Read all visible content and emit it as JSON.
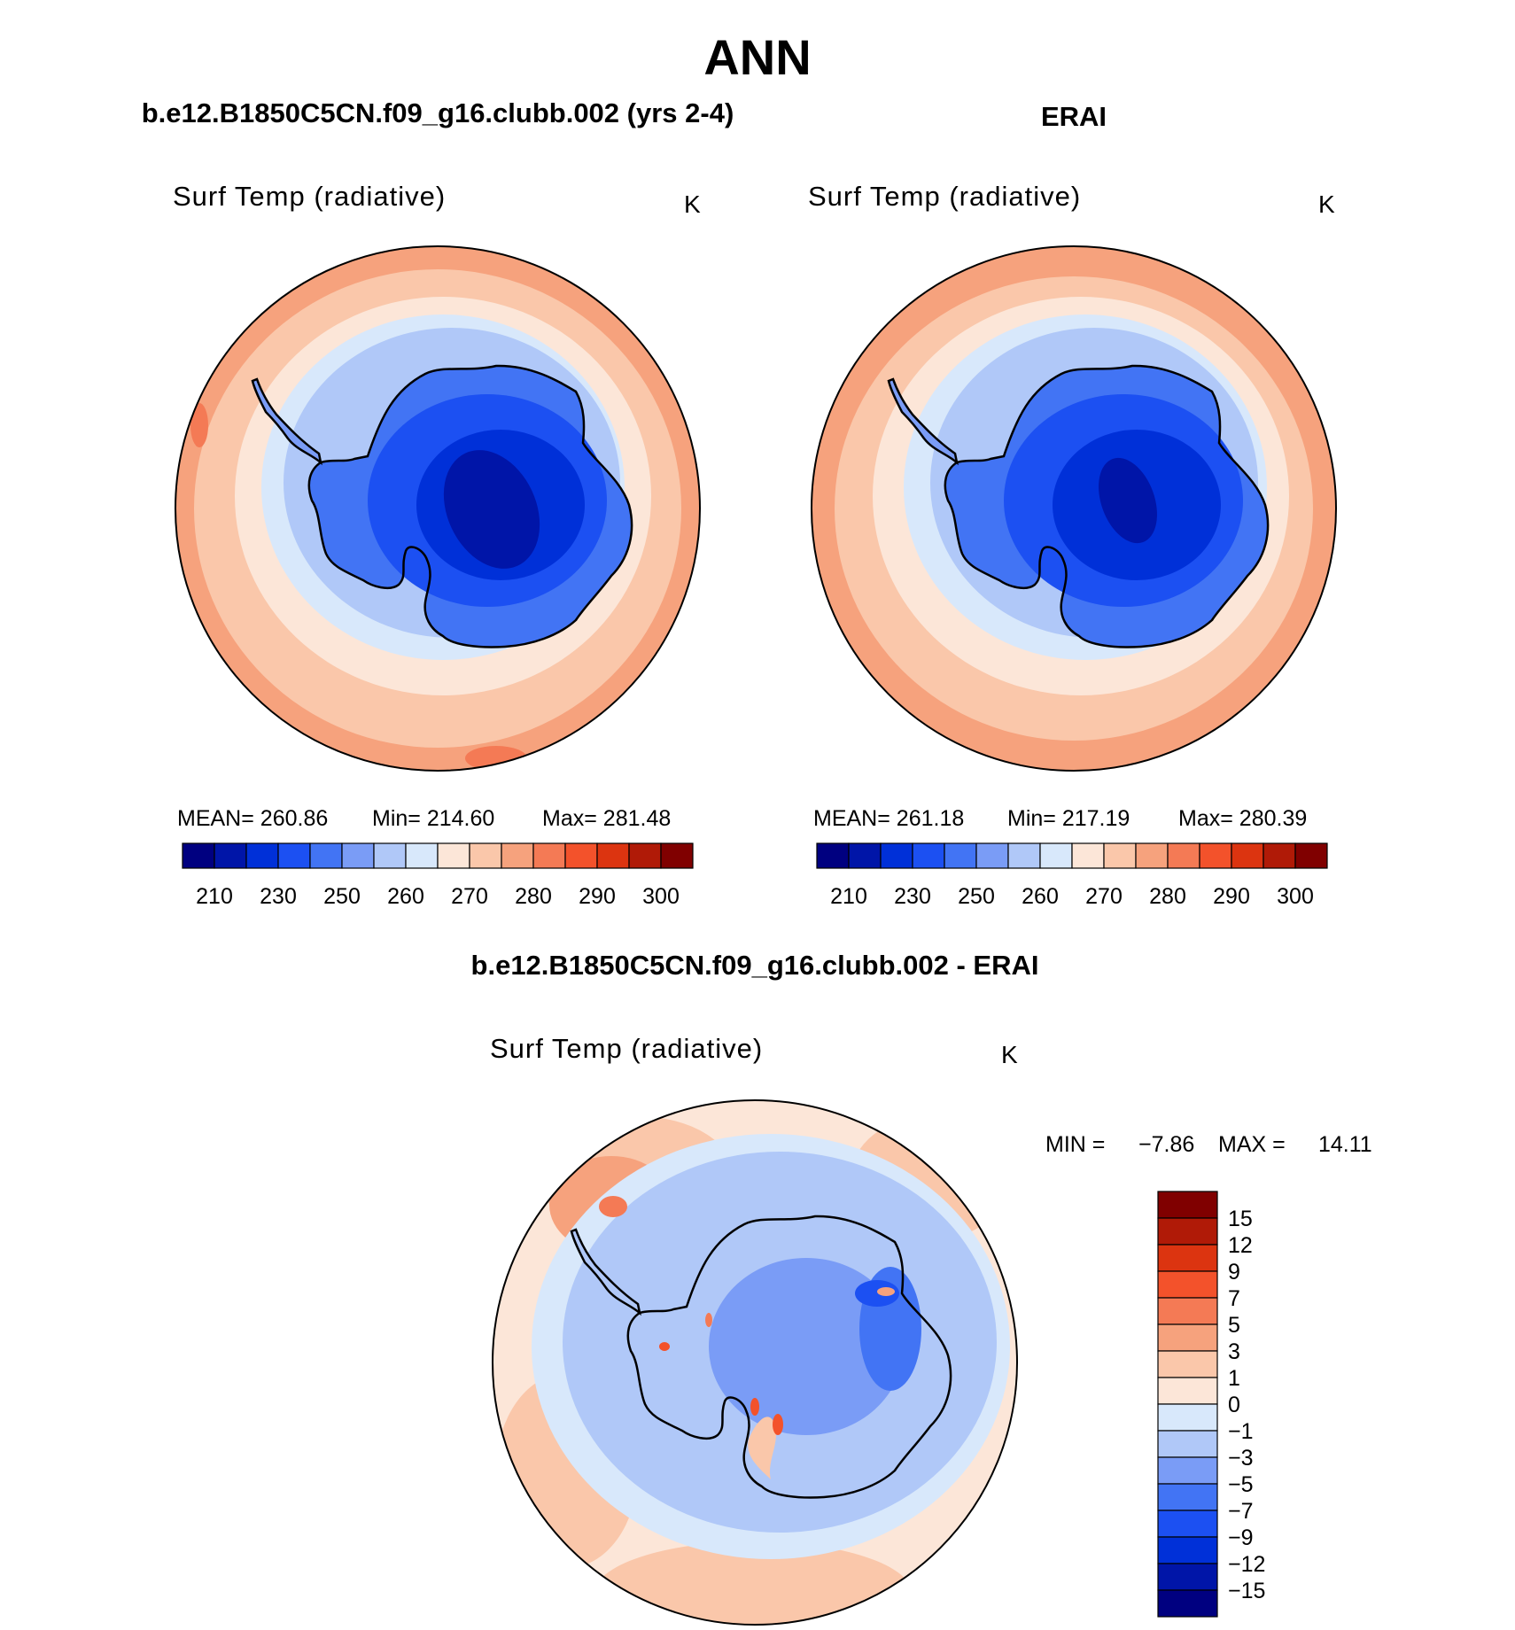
{
  "figure": {
    "title": "ANN"
  },
  "colors": {
    "abs": [
      "#000080",
      "#0015a8",
      "#0030d8",
      "#1c50f2",
      "#4274f4",
      "#7a9cf6",
      "#b0c8f8",
      "#d8e8fb",
      "#fce6d8",
      "#fac7aa",
      "#f6a27d",
      "#f47a55",
      "#f3522b",
      "#dc3410",
      "#b01a07",
      "#800000"
    ],
    "diff": [
      "#000080",
      "#0015a8",
      "#0030d8",
      "#1c50f2",
      "#4274f4",
      "#7a9cf6",
      "#b0c8f8",
      "#d8e8fb",
      "#fce6d8",
      "#fac7aa",
      "#f6a27d",
      "#f47a55",
      "#f3522b",
      "#dc3410",
      "#b01a07",
      "#800000"
    ]
  },
  "panels": {
    "model": {
      "header": "b.e12.B1850C5CN.f09_g16.clubb.002 (yrs 2-4)",
      "field": "Surf Temp (radiative)",
      "units": "K",
      "stats": {
        "mean_label": "MEAN=",
        "mean": "260.86",
        "min_label": "Min=",
        "min": "214.60",
        "max_label": "Max=",
        "max": "281.48"
      },
      "colorbar_ticks": [
        "210",
        "230",
        "250",
        "260",
        "270",
        "280",
        "290",
        "300"
      ]
    },
    "obs": {
      "header": "ERAI",
      "field": "Surf Temp (radiative)",
      "units": "K",
      "stats": {
        "mean_label": "MEAN=",
        "mean": "261.18",
        "min_label": "Min=",
        "min": "217.19",
        "max_label": "Max=",
        "max": "280.39"
      },
      "colorbar_ticks": [
        "210",
        "230",
        "250",
        "260",
        "270",
        "280",
        "290",
        "300"
      ]
    },
    "diff": {
      "header": "b.e12.B1850C5CN.f09_g16.clubb.002 - ERAI",
      "field": "Surf Temp (radiative)",
      "units": "K",
      "stats": {
        "min_label": "MIN =",
        "min": "−7.86",
        "max_label": "MAX =",
        "max": "14.11"
      },
      "colorbar_ticks": [
        "15",
        "12",
        "9",
        "7",
        "5",
        "3",
        "1",
        "0",
        "−1",
        "−3",
        "−5",
        "−7",
        "−9",
        "−12",
        "−15"
      ]
    }
  },
  "chart_data": [
    {
      "type": "heatmap",
      "projection": "south-polar-stereographic",
      "title": "b.e12.B1850C5CN.f09_g16.clubb.002 (yrs 2-4)",
      "variable": "Surf Temp (radiative)",
      "units": "K",
      "mean": 260.86,
      "min": 214.6,
      "max": 281.48,
      "contour_levels": [
        210,
        220,
        230,
        240,
        250,
        255,
        260,
        265,
        270,
        275,
        280,
        285,
        290,
        295,
        300
      ],
      "colorbar_tick_labels": [
        "210",
        "230",
        "250",
        "260",
        "270",
        "280",
        "290",
        "300"
      ]
    },
    {
      "type": "heatmap",
      "projection": "south-polar-stereographic",
      "title": "ERAI",
      "variable": "Surf Temp (radiative)",
      "units": "K",
      "mean": 261.18,
      "min": 217.19,
      "max": 280.39,
      "contour_levels": [
        210,
        220,
        230,
        240,
        250,
        255,
        260,
        265,
        270,
        275,
        280,
        285,
        290,
        295,
        300
      ],
      "colorbar_tick_labels": [
        "210",
        "230",
        "250",
        "260",
        "270",
        "280",
        "290",
        "300"
      ]
    },
    {
      "type": "heatmap",
      "projection": "south-polar-stereographic",
      "title": "b.e12.B1850C5CN.f09_g16.clubb.002 - ERAI",
      "variable": "Surf Temp (radiative)",
      "units": "K",
      "min": -7.86,
      "max": 14.11,
      "contour_levels": [
        -15,
        -12,
        -9,
        -7,
        -5,
        -3,
        -1,
        0,
        1,
        3,
        5,
        7,
        9,
        12,
        15
      ],
      "colorbar_tick_labels": [
        "15",
        "12",
        "9",
        "7",
        "5",
        "3",
        "1",
        "0",
        "−1",
        "−3",
        "−5",
        "−7",
        "−9",
        "−12",
        "−15"
      ]
    }
  ]
}
